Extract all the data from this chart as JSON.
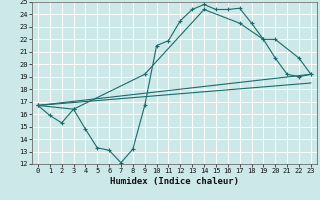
{
  "xlabel": "Humidex (Indice chaleur)",
  "bg_color": "#cce8e8",
  "grid_color": "#ffffff",
  "line_color": "#1a6b6b",
  "xlim": [
    -0.5,
    23.5
  ],
  "ylim": [
    12,
    25
  ],
  "xticks": [
    0,
    1,
    2,
    3,
    4,
    5,
    6,
    7,
    8,
    9,
    10,
    11,
    12,
    13,
    14,
    15,
    16,
    17,
    18,
    19,
    20,
    21,
    22,
    23
  ],
  "yticks": [
    12,
    13,
    14,
    15,
    16,
    17,
    18,
    19,
    20,
    21,
    22,
    23,
    24,
    25
  ],
  "line1_x": [
    0,
    1,
    2,
    3,
    4,
    5,
    6,
    7,
    8,
    9,
    10,
    11,
    12,
    13,
    14,
    15,
    16,
    17,
    18,
    19,
    20,
    21,
    22,
    23
  ],
  "line1_y": [
    16.7,
    15.9,
    15.3,
    16.4,
    14.8,
    13.3,
    13.1,
    12.1,
    13.2,
    16.7,
    21.5,
    21.9,
    23.5,
    24.4,
    24.8,
    24.4,
    24.4,
    24.5,
    23.3,
    22.0,
    20.5,
    19.2,
    19.0,
    19.2
  ],
  "line2_x": [
    0,
    3,
    9,
    14,
    17,
    19,
    20,
    22,
    23
  ],
  "line2_y": [
    16.7,
    16.4,
    19.2,
    24.4,
    23.3,
    22.0,
    22.0,
    20.5,
    19.2
  ],
  "line3_x": [
    0,
    23
  ],
  "line3_y": [
    16.7,
    19.2
  ],
  "line4_x": [
    0,
    23
  ],
  "line4_y": [
    16.7,
    18.5
  ]
}
